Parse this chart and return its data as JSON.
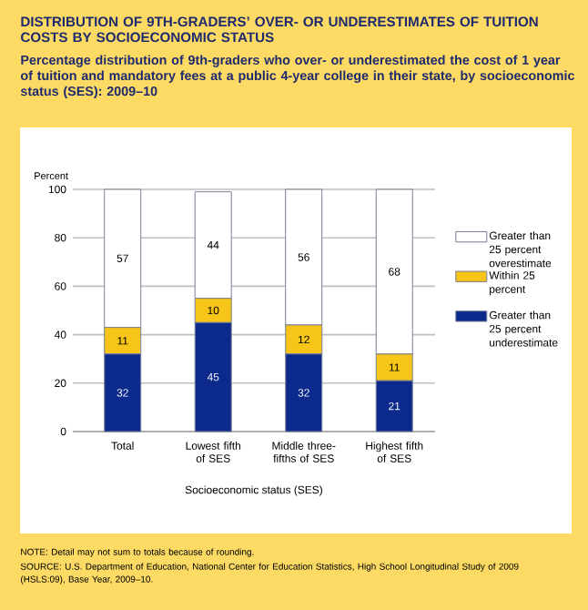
{
  "chart_data": {
    "type": "bar",
    "title": "DISTRIBUTION OF 9TH-GRADERS’ OVER- OR UNDERESTIMATES OF TUITION COSTS BY SOCIOECONOMIC STATUS",
    "subtitle": "Percentage distribution of 9th-graders who over- or underestimated the cost of 1 year of tuition and mandatory fees at a public 4-year college in their state, by socioeconomic status (SES): 2009–10",
    "xlabel": "Socioeconomic status (SES)",
    "ylabel": "Percent",
    "categories": [
      "Total",
      "Lowest fifth of SES",
      "Middle three-fifths of SES",
      "Highest fifth of SES"
    ],
    "series": [
      {
        "name": "Greater than 25 percent underestimate",
        "color": "#0c2a8c",
        "values": [
          32,
          45,
          32,
          21
        ]
      },
      {
        "name": "Within 25 percent",
        "color": "#f6c518",
        "values": [
          11,
          10,
          12,
          11
        ]
      },
      {
        "name": "Greater than 25 percent overestimate",
        "color": "#ffffff",
        "values": [
          57,
          44,
          56,
          68
        ]
      }
    ],
    "stacked": true,
    "ylim": [
      0,
      100
    ],
    "yticks": [
      0,
      20,
      40,
      60,
      80,
      100
    ],
    "grid": "y",
    "legend": "right",
    "data_labels": true,
    "annotations": [
      "NOTE: Detail may not sum to totals because of rounding.",
      "SOURCE: U.S. Department of Education, National Center for Education Statistics, High School Longitudinal Study of 2009 (HSLS:09), Base Year, 2009–10."
    ]
  }
}
